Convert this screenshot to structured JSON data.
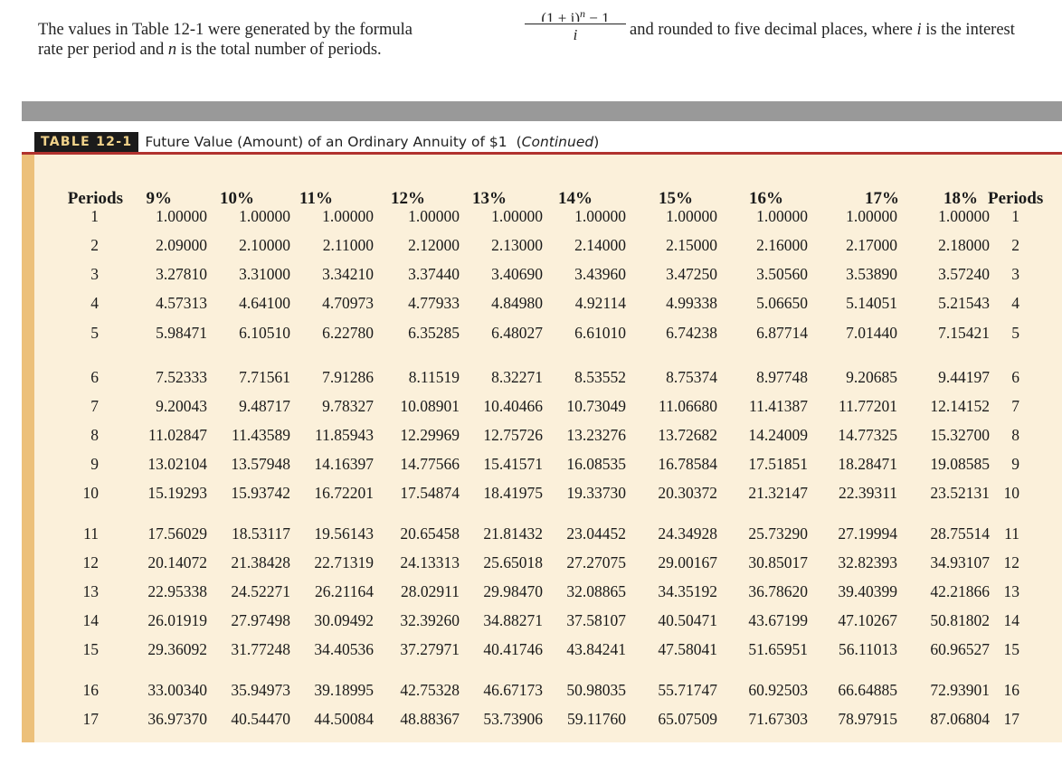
{
  "intro": {
    "line1_a": "The values in Table 12-1 were generated by the formula",
    "formula_num": "(1 + i)",
    "formula_exp": "n",
    "formula_minus": " − 1",
    "formula_den": "i",
    "line1_b_a": "and rounded to five decimal places, where ",
    "line1_b_i": "i",
    "line1_b_c": " is the interest",
    "line2_a": "rate per period and ",
    "line2_n": "n",
    "line2_c": " is the total number of periods."
  },
  "table": {
    "label": "TABLE 12-1",
    "title": "Future Value (Amount) of an Ordinary Annuity of $1",
    "continued_open": "(",
    "continued": "Continued",
    "continued_close": ")",
    "headers": [
      "Periods",
      "9%",
      "10%",
      "11%",
      "12%",
      "13%",
      "14%",
      "15%",
      "16%",
      "17%",
      "18%",
      "Periods"
    ],
    "rows": [
      [
        "1",
        "1.00000",
        "1.00000",
        "1.00000",
        "1.00000",
        "1.00000",
        "1.00000",
        "1.00000",
        "1.00000",
        "1.00000",
        "1.00000",
        "1"
      ],
      [
        "2",
        "2.09000",
        "2.10000",
        "2.11000",
        "2.12000",
        "2.13000",
        "2.14000",
        "2.15000",
        "2.16000",
        "2.17000",
        "2.18000",
        "2"
      ],
      [
        "3",
        "3.27810",
        "3.31000",
        "3.34210",
        "3.37440",
        "3.40690",
        "3.43960",
        "3.47250",
        "3.50560",
        "3.53890",
        "3.57240",
        "3"
      ],
      [
        "4",
        "4.57313",
        "4.64100",
        "4.70973",
        "4.77933",
        "4.84980",
        "4.92114",
        "4.99338",
        "5.06650",
        "5.14051",
        "5.21543",
        "4"
      ],
      [
        "5",
        "5.98471",
        "6.10510",
        "6.22780",
        "6.35285",
        "6.48027",
        "6.61010",
        "6.74238",
        "6.87714",
        "7.01440",
        "7.15421",
        "5"
      ],
      [
        "6",
        "7.52333",
        "7.71561",
        "7.91286",
        "8.11519",
        "8.32271",
        "8.53552",
        "8.75374",
        "8.97748",
        "9.20685",
        "9.44197",
        "6"
      ],
      [
        "7",
        "9.20043",
        "9.48717",
        "9.78327",
        "10.08901",
        "10.40466",
        "10.73049",
        "11.06680",
        "11.41387",
        "11.77201",
        "12.14152",
        "7"
      ],
      [
        "8",
        "11.02847",
        "11.43589",
        "11.85943",
        "12.29969",
        "12.75726",
        "13.23276",
        "13.72682",
        "14.24009",
        "14.77325",
        "15.32700",
        "8"
      ],
      [
        "9",
        "13.02104",
        "13.57948",
        "14.16397",
        "14.77566",
        "15.41571",
        "16.08535",
        "16.78584",
        "17.51851",
        "18.28471",
        "19.08585",
        "9"
      ],
      [
        "10",
        "15.19293",
        "15.93742",
        "16.72201",
        "17.54874",
        "18.41975",
        "19.33730",
        "20.30372",
        "21.32147",
        "22.39311",
        "23.52131",
        "10"
      ],
      [
        "11",
        "17.56029",
        "18.53117",
        "19.56143",
        "20.65458",
        "21.81432",
        "23.04452",
        "24.34928",
        "25.73290",
        "27.19994",
        "28.75514",
        "11"
      ],
      [
        "12",
        "20.14072",
        "21.38428",
        "22.71319",
        "24.13313",
        "25.65018",
        "27.27075",
        "29.00167",
        "30.85017",
        "32.82393",
        "34.93107",
        "12"
      ],
      [
        "13",
        "22.95338",
        "24.52271",
        "26.21164",
        "28.02911",
        "29.98470",
        "32.08865",
        "34.35192",
        "36.78620",
        "39.40399",
        "42.21866",
        "13"
      ],
      [
        "14",
        "26.01919",
        "27.97498",
        "30.09492",
        "32.39260",
        "34.88271",
        "37.58107",
        "40.50471",
        "43.67199",
        "47.10267",
        "50.81802",
        "14"
      ],
      [
        "15",
        "29.36092",
        "31.77248",
        "34.40536",
        "37.27971",
        "40.41746",
        "43.84241",
        "47.58041",
        "51.65951",
        "56.11013",
        "60.96527",
        "15"
      ],
      [
        "16",
        "33.00340",
        "35.94973",
        "39.18995",
        "42.75328",
        "46.67173",
        "50.98035",
        "55.71747",
        "60.92503",
        "66.64885",
        "72.93901",
        "16"
      ],
      [
        "17",
        "36.97370",
        "40.54470",
        "44.50084",
        "48.88367",
        "53.73906",
        "59.11760",
        "65.07509",
        "71.67303",
        "78.97915",
        "87.06804",
        "17"
      ]
    ]
  }
}
